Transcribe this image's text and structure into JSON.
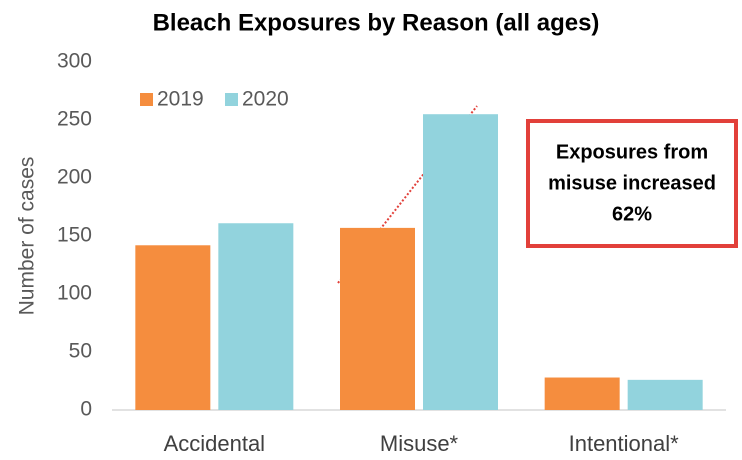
{
  "chart_data": {
    "type": "bar",
    "title": "Bleach Exposures by Reason (all ages)",
    "y_label": "Number of cases",
    "categories": [
      "Accidental",
      "Misuse*",
      "Intentional*"
    ],
    "series": [
      {
        "name": "2019",
        "color": "#f58d3e",
        "values": [
          142,
          157,
          28
        ]
      },
      {
        "name": "2020",
        "color": "#92d3dd",
        "values": [
          161,
          255,
          26
        ]
      }
    ],
    "ylim": [
      0,
      300
    ],
    "yticks": [
      0,
      50,
      100,
      150,
      200,
      250,
      300
    ],
    "grid": false,
    "legend": "top-left",
    "annotation": [
      "Exposures from",
      "misuse increased",
      "62%"
    ]
  }
}
